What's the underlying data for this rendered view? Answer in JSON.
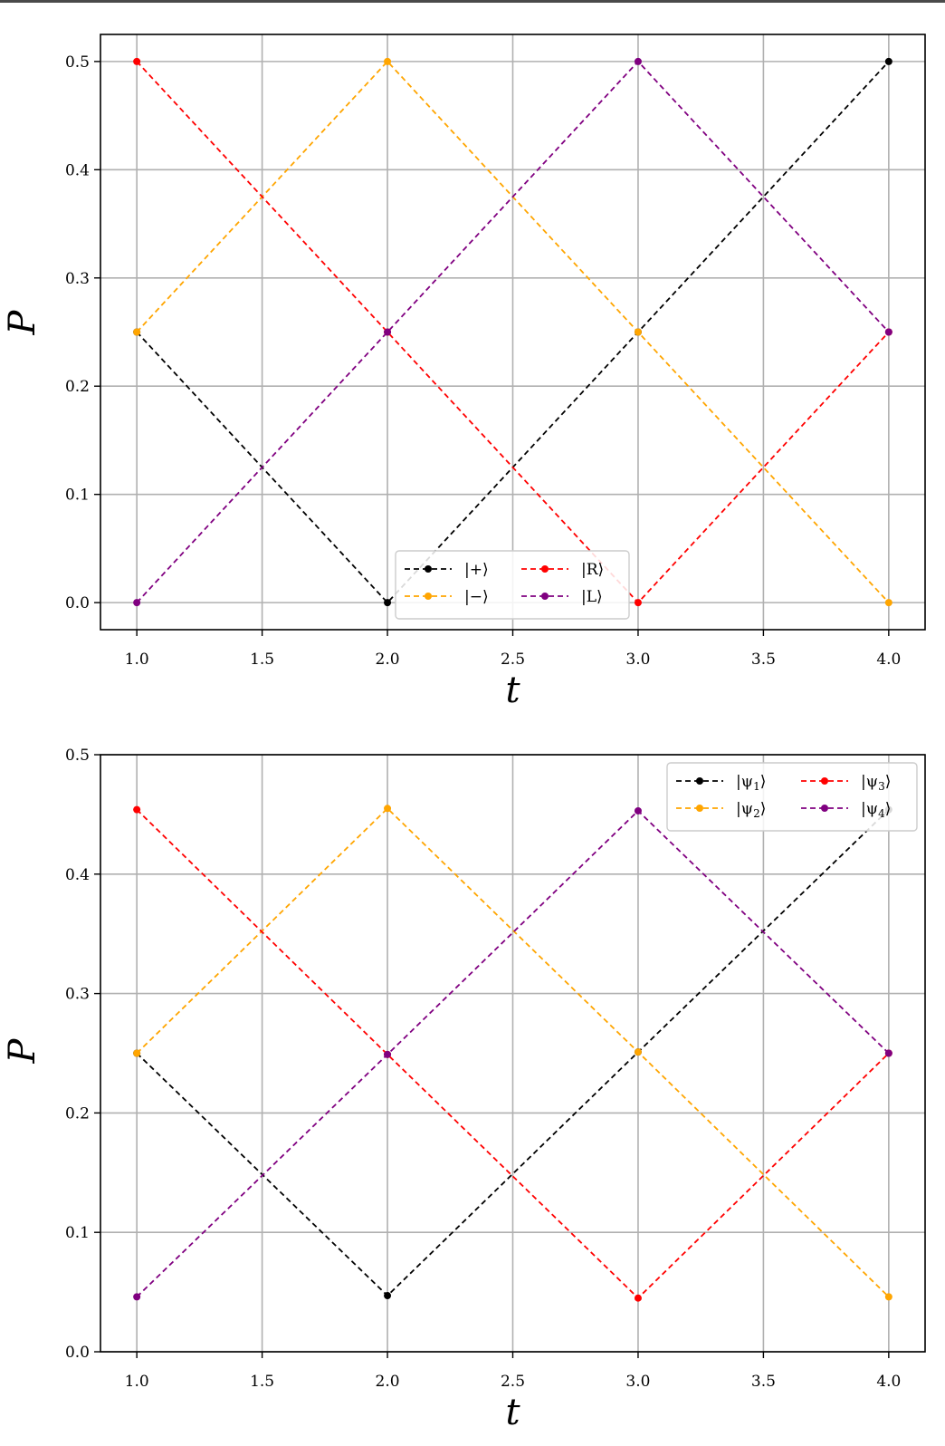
{
  "chart_data": [
    {
      "type": "line",
      "title": "",
      "xlabel": "t",
      "ylabel": "P",
      "xlim": [
        0.855,
        4.145
      ],
      "ylim": [
        -0.025,
        0.525
      ],
      "x": [
        1.0,
        2.0,
        3.0,
        4.0
      ],
      "xticks": [
        "1.0",
        "1.5",
        "2.0",
        "2.5",
        "3.0",
        "3.5",
        "4.0"
      ],
      "yticks": [
        "0.0",
        "0.1",
        "0.2",
        "0.3",
        "0.4",
        "0.5"
      ],
      "grid": true,
      "line_style": "dashed",
      "markers": true,
      "legend": {
        "placement": "lower-center",
        "columns": 2
      },
      "series": [
        {
          "name": "|+⟩",
          "color": "#000000",
          "values": [
            0.25,
            0.0,
            0.25,
            0.5
          ]
        },
        {
          "name": "|−⟩",
          "color": "#FFA500",
          "values": [
            0.25,
            0.5,
            0.25,
            0.0
          ]
        },
        {
          "name": "|R⟩",
          "color": "#FF0000",
          "values": [
            0.5,
            0.25,
            0.0,
            0.25
          ]
        },
        {
          "name": "|L⟩",
          "color": "#800080",
          "values": [
            0.0,
            0.25,
            0.5,
            0.25
          ]
        }
      ]
    },
    {
      "type": "line",
      "title": "",
      "xlabel": "t",
      "ylabel": "P",
      "xlim": [
        0.855,
        4.145
      ],
      "ylim": [
        0.0,
        0.5
      ],
      "x": [
        1.0,
        2.0,
        3.0,
        4.0
      ],
      "xticks": [
        "1.0",
        "1.5",
        "2.0",
        "2.5",
        "3.0",
        "3.5",
        "4.0"
      ],
      "yticks": [
        "0.0",
        "0.1",
        "0.2",
        "0.3",
        "0.4",
        "0.5"
      ],
      "grid": true,
      "line_style": "dashed",
      "markers": true,
      "legend": {
        "placement": "top-right",
        "columns": 2
      },
      "series": [
        {
          "name": "|ψ1⟩",
          "color": "#000000",
          "values": [
            0.25,
            0.047,
            0.251,
            0.454
          ]
        },
        {
          "name": "|ψ2⟩",
          "color": "#FFA500",
          "values": [
            0.25,
            0.455,
            0.251,
            0.046
          ]
        },
        {
          "name": "|ψ3⟩",
          "color": "#FF0000",
          "values": [
            0.454,
            0.249,
            0.045,
            0.25
          ]
        },
        {
          "name": "|ψ4⟩",
          "color": "#800080",
          "values": [
            0.046,
            0.249,
            0.453,
            0.25
          ]
        }
      ]
    }
  ]
}
